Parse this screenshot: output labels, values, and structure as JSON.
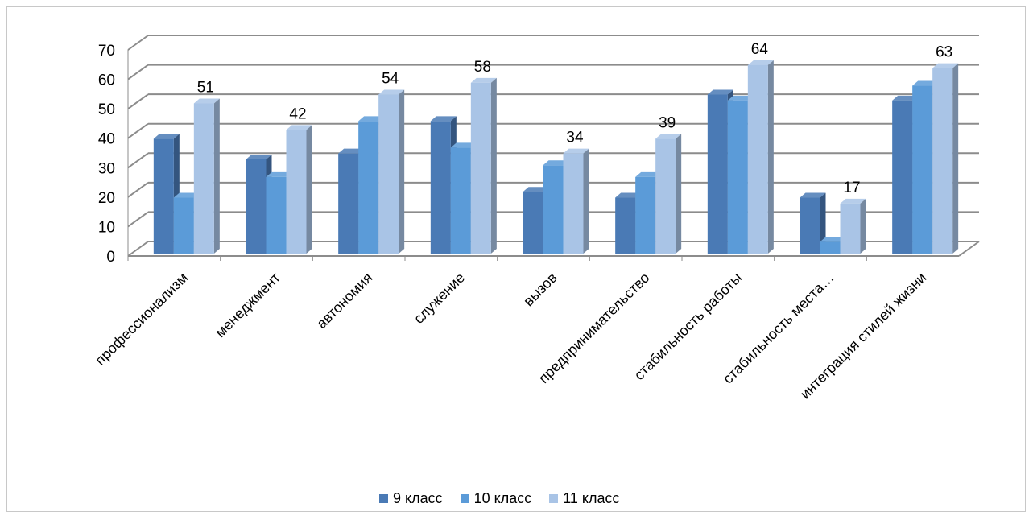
{
  "chart_data": {
    "type": "bar",
    "title": "",
    "xlabel": "",
    "ylabel": "",
    "ylim": [
      0,
      70
    ],
    "yticks": [
      0,
      10,
      20,
      30,
      40,
      50,
      60,
      70
    ],
    "grid": true,
    "legend_position": "bottom",
    "categories": [
      "профессионализм",
      "менеджмент",
      "автономия",
      "служение",
      "вызов",
      "предпринимательство",
      "стабильность работы",
      "стабильность места…",
      "интеграция стилей жизни"
    ],
    "series": [
      {
        "name": "9 класс",
        "color": "#4a7ab5",
        "values": [
          39,
          32,
          34,
          45,
          21,
          19,
          54,
          19,
          52
        ]
      },
      {
        "name": "10 класс",
        "color": "#5b9bd8",
        "values": [
          19,
          26,
          45,
          36,
          30,
          26,
          52,
          4,
          57
        ]
      },
      {
        "name": "11 класс",
        "color": "#a9c4e6",
        "values": [
          51,
          42,
          54,
          58,
          34,
          39,
          64,
          17,
          63
        ]
      }
    ],
    "data_labels": {
      "series": "11 класс",
      "values": [
        "51",
        "42",
        "54",
        "58",
        "34",
        "39",
        "64",
        "17",
        "63"
      ]
    }
  }
}
